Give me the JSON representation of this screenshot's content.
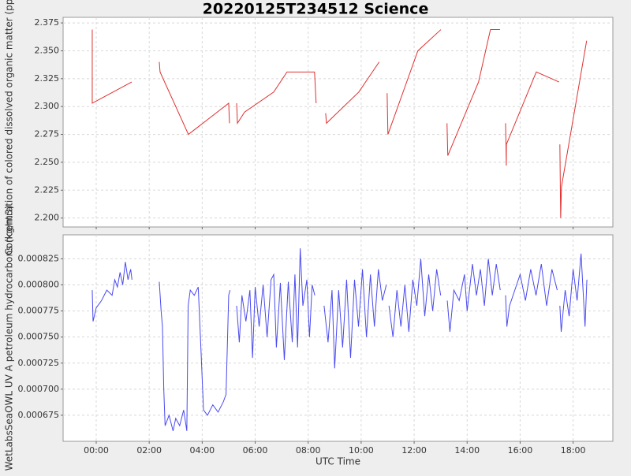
{
  "title": "20220125T234512 Science",
  "chart_data": [
    {
      "type": "line",
      "ylabel": "Concentration of colored dissolved organic matter (ppb)",
      "xlim": [
        -1.25,
        19.5
      ],
      "ylim": [
        2.192,
        2.38
      ],
      "grid": true,
      "xticks": [
        {
          "value": 0,
          "label": "00:00"
        },
        {
          "value": 2,
          "label": "02:00"
        },
        {
          "value": 4,
          "label": "04:00"
        },
        {
          "value": 6,
          "label": "06:00"
        },
        {
          "value": 8,
          "label": "08:00"
        },
        {
          "value": 10,
          "label": "10:00"
        },
        {
          "value": 12,
          "label": "12:00"
        },
        {
          "value": 14,
          "label": "14:00"
        },
        {
          "value": 16,
          "label": "16:00"
        },
        {
          "value": 18,
          "label": "18:00"
        }
      ],
      "yticks": [
        {
          "value": 2.2,
          "label": "2.200"
        },
        2.225,
        {
          "value": 2.25,
          "label": "2.250"
        },
        2.275,
        {
          "value": 2.3,
          "label": "2.300"
        },
        2.325,
        {
          "value": 2.35,
          "label": "2.350"
        },
        2.375
      ],
      "series": [
        {
          "color": "#e03030",
          "x": [
            -0.15,
            -0.15,
            1.34,
            null,
            2.38,
            2.41,
            3.48,
            5.0,
            5.03,
            null,
            5.3,
            5.33,
            5.6,
            6.7,
            7.2,
            8.24,
            8.3,
            null,
            8.66,
            8.69,
            9.91,
            10.68,
            null,
            10.98,
            11.01,
            12.14,
            13.01,
            null,
            13.24,
            13.27,
            14.43,
            14.88,
            15.24,
            null,
            15.45,
            15.48,
            15.48,
            16.61,
            17.47,
            null,
            17.5,
            17.53,
            17.56,
            18.51
          ],
          "values": [
            2.369,
            2.303,
            2.322,
            null,
            2.34,
            2.331,
            2.275,
            2.303,
            2.285,
            null,
            2.303,
            2.285,
            2.295,
            2.313,
            2.331,
            2.331,
            2.303,
            null,
            2.294,
            2.285,
            2.313,
            2.34,
            null,
            2.312,
            2.275,
            2.35,
            2.369,
            null,
            2.285,
            2.256,
            2.322,
            2.369,
            2.369,
            null,
            2.285,
            2.247,
            2.266,
            2.331,
            2.322,
            null,
            2.266,
            2.2,
            2.228,
            2.359
          ]
        }
      ]
    },
    {
      "type": "line",
      "ylabel": "WetLabsSeaOWL UV A petroleum hydrocarbons (kg/m3)",
      "xlabel": "UTC Time",
      "xlim": [
        -1.25,
        19.5
      ],
      "ylim": [
        0.00065,
        0.000848
      ],
      "grid": true,
      "xticks": [
        {
          "value": 0,
          "label": "00:00"
        },
        {
          "value": 2,
          "label": "02:00"
        },
        {
          "value": 4,
          "label": "04:00"
        },
        {
          "value": 6,
          "label": "06:00"
        },
        {
          "value": 8,
          "label": "08:00"
        },
        {
          "value": 10,
          "label": "10:00"
        },
        {
          "value": 12,
          "label": "12:00"
        },
        {
          "value": 14,
          "label": "14:00"
        },
        {
          "value": 16,
          "label": "16:00"
        },
        {
          "value": 18,
          "label": "18:00"
        }
      ],
      "yticks": [
        0.000675,
        {
          "value": 0.0007,
          "label": "0.000700"
        },
        0.000725,
        {
          "value": 0.00075,
          "label": "0.000750"
        },
        0.000775,
        {
          "value": 0.0008,
          "label": "0.000800"
        },
        0.000825
      ],
      "series": [
        {
          "color": "#4a4af0",
          "x": [
            -0.15,
            -0.12,
            0.0,
            0.2,
            0.4,
            0.6,
            0.7,
            0.8,
            0.9,
            1.0,
            1.1,
            1.2,
            1.3,
            1.35,
            null,
            2.38,
            2.45,
            2.5,
            2.55,
            2.6,
            2.75,
            2.9,
            3.0,
            3.15,
            3.3,
            3.42,
            3.47,
            3.55,
            3.7,
            3.85,
            3.95,
            4.05,
            4.2,
            4.4,
            4.6,
            4.8,
            4.9,
            5.0,
            5.05,
            null,
            5.3,
            5.4,
            5.5,
            5.65,
            5.8,
            5.9,
            6.0,
            6.15,
            6.3,
            6.45,
            6.6,
            6.7,
            6.8,
            6.95,
            7.1,
            7.25,
            7.4,
            7.5,
            7.6,
            7.7,
            7.8,
            7.95,
            8.05,
            8.15,
            8.25,
            null,
            8.6,
            8.75,
            8.9,
            9.0,
            9.15,
            9.3,
            9.45,
            9.6,
            9.75,
            9.9,
            10.05,
            10.2,
            10.35,
            10.5,
            10.65,
            10.8,
            10.95,
            null,
            11.05,
            11.2,
            11.35,
            11.5,
            11.65,
            11.8,
            11.95,
            12.1,
            12.25,
            12.4,
            12.55,
            12.7,
            12.85,
            13.0,
            null,
            13.25,
            13.35,
            13.5,
            13.7,
            13.9,
            14.0,
            14.2,
            14.35,
            14.5,
            14.65,
            14.8,
            14.95,
            15.1,
            15.25,
            null,
            15.45,
            15.5,
            15.6,
            15.8,
            16.0,
            16.2,
            16.4,
            16.6,
            16.8,
            17.0,
            17.2,
            17.4,
            null,
            17.5,
            17.55,
            17.7,
            17.85,
            18.0,
            18.15,
            18.3,
            18.45,
            18.52
          ],
          "values": [
            0.000795,
            0.000765,
            0.000778,
            0.000785,
            0.000795,
            0.00079,
            0.000805,
            0.000798,
            0.000812,
            0.0008,
            0.000822,
            0.000805,
            0.000815,
            0.000805,
            null,
            0.000803,
            0.000775,
            0.00076,
            0.0007,
            0.000665,
            0.000675,
            0.00066,
            0.000672,
            0.000665,
            0.00068,
            0.00066,
            0.00078,
            0.000795,
            0.00079,
            0.000798,
            0.00074,
            0.00068,
            0.000675,
            0.000685,
            0.000678,
            0.000688,
            0.000695,
            0.00079,
            0.000795,
            null,
            0.00078,
            0.000745,
            0.00079,
            0.000765,
            0.000795,
            0.00073,
            0.000798,
            0.00076,
            0.0008,
            0.00075,
            0.000805,
            0.00081,
            0.00074,
            0.000802,
            0.000728,
            0.000803,
            0.000745,
            0.00081,
            0.00074,
            0.000835,
            0.00078,
            0.000805,
            0.00075,
            0.0008,
            0.00079,
            null,
            0.00078,
            0.000745,
            0.000795,
            0.00072,
            0.000795,
            0.00074,
            0.000805,
            0.00073,
            0.000805,
            0.00076,
            0.000815,
            0.00075,
            0.00081,
            0.00076,
            0.000815,
            0.000785,
            0.0008,
            null,
            0.00078,
            0.00075,
            0.000795,
            0.00076,
            0.0008,
            0.000755,
            0.000805,
            0.00078,
            0.000825,
            0.00077,
            0.00081,
            0.000775,
            0.000815,
            0.00079,
            null,
            0.000785,
            0.000755,
            0.000795,
            0.000785,
            0.00081,
            0.000775,
            0.00082,
            0.00079,
            0.000815,
            0.00078,
            0.000825,
            0.00079,
            0.00082,
            0.000795,
            null,
            0.00079,
            0.00076,
            0.00078,
            0.000795,
            0.00081,
            0.000785,
            0.000815,
            0.00079,
            0.00082,
            0.00078,
            0.000815,
            0.000795,
            null,
            0.00078,
            0.000755,
            0.000795,
            0.00077,
            0.000815,
            0.000785,
            0.00083,
            0.00076,
            0.000805
          ]
        }
      ]
    }
  ]
}
